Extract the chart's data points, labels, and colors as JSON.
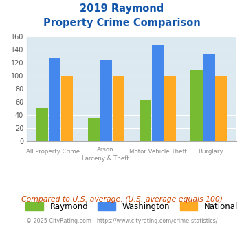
{
  "title_line1": "2019 Raymond",
  "title_line2": "Property Crime Comparison",
  "cat_labels_row1": [
    "All Property Crime",
    "Arson",
    "Motor Vehicle Theft",
    "Burglary"
  ],
  "cat_labels_row2": [
    "",
    "Larceny & Theft",
    "",
    ""
  ],
  "raymond": [
    50,
    35,
    62,
    108
  ],
  "washington": [
    127,
    124,
    147,
    133
  ],
  "national": [
    100,
    100,
    100,
    100
  ],
  "bar_colors": {
    "raymond": "#77bb33",
    "washington": "#4488ee",
    "national": "#ffaa22"
  },
  "ylim": [
    0,
    160
  ],
  "yticks": [
    0,
    20,
    40,
    60,
    80,
    100,
    120,
    140,
    160
  ],
  "bg_color": "#dce9f0",
  "title_color": "#1155aa",
  "legend_labels": [
    "Raymond",
    "Washington",
    "National"
  ],
  "footer_text": "Compared to U.S. average. (U.S. average equals 100)",
  "copyright_text": "© 2025 CityRating.com - https://www.cityrating.com/crime-statistics/",
  "footer_color": "#cc4400",
  "copyright_color": "#888888",
  "xticklabel_color": "#888888"
}
